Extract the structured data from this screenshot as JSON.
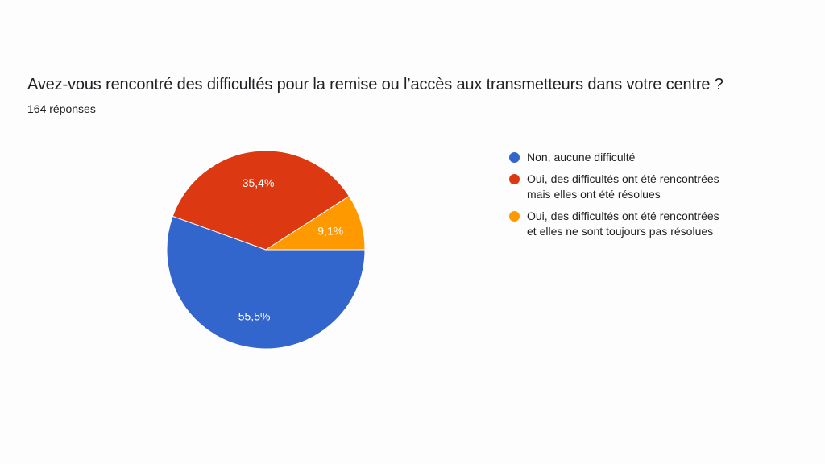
{
  "question": {
    "title": "Avez-vous rencontré des difficultés pour la remise ou l’accès aux transmetteurs dans votre centre ?",
    "response_count": "164 réponses"
  },
  "chart_data": {
    "type": "pie",
    "categories": [
      "Non, aucune difficulté",
      "Oui, des difficultés ont été rencontrées mais elles ont été résolues",
      "Oui, des difficultés ont été rencontrées et elles ne sont toujours pas résolues"
    ],
    "legend_lines": [
      "Non, aucune difficulté",
      "Oui, des difficultés ont été rencontrées\nmais elles ont été résolues",
      "Oui, des difficultés ont été rencontrées\net elles ne sont toujours pas résolues"
    ],
    "values": [
      55.5,
      35.4,
      9.1
    ],
    "value_labels": [
      "55,5%",
      "35,4%",
      "9,1%"
    ],
    "colors": [
      "#3366cc",
      "#dc3912",
      "#ff9900"
    ],
    "legend_position": "right",
    "start": "3 o'clock",
    "direction": "clockwise"
  }
}
